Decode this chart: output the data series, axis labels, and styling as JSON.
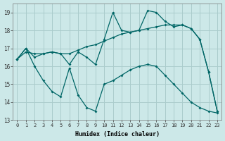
{
  "xlabel": "Humidex (Indice chaleur)",
  "bg_color": "#cce8e8",
  "line_color": "#006666",
  "grid_color": "#aacccc",
  "ylim": [
    13,
    19.5
  ],
  "xlim": [
    -0.5,
    23.5
  ],
  "yticks": [
    13,
    14,
    15,
    16,
    17,
    18,
    19
  ],
  "xticks": [
    0,
    1,
    2,
    3,
    4,
    5,
    6,
    7,
    8,
    9,
    10,
    11,
    12,
    13,
    14,
    15,
    16,
    17,
    18,
    19,
    20,
    21,
    22,
    23
  ],
  "line1_x": [
    0,
    1,
    2,
    3,
    4,
    5,
    6,
    7,
    8,
    9,
    10,
    11,
    12,
    13,
    14,
    15,
    16,
    17,
    18,
    19,
    20,
    21,
    22,
    23
  ],
  "line1_y": [
    16.4,
    17.0,
    16.5,
    16.7,
    16.8,
    16.7,
    16.1,
    16.8,
    16.5,
    16.1,
    17.5,
    19.0,
    18.0,
    17.9,
    18.0,
    19.1,
    19.0,
    18.5,
    18.2,
    18.3,
    18.1,
    17.5,
    15.7,
    13.5
  ],
  "line2_x": [
    0,
    1,
    2,
    3,
    4,
    5,
    6,
    7,
    8,
    9,
    10,
    11,
    12,
    13,
    14,
    15,
    16,
    17,
    18,
    19,
    20,
    21,
    22,
    23
  ],
  "line2_y": [
    16.4,
    17.0,
    16.0,
    15.2,
    14.6,
    14.3,
    15.9,
    14.4,
    13.7,
    13.5,
    15.0,
    15.2,
    15.5,
    15.8,
    16.0,
    16.1,
    16.0,
    15.5,
    15.0,
    14.5,
    14.0,
    13.7,
    13.5,
    13.4
  ],
  "line3_x": [
    0,
    1,
    2,
    3,
    4,
    5,
    6,
    7,
    8,
    9,
    10,
    11,
    12,
    13,
    14,
    15,
    16,
    17,
    18,
    19,
    20,
    21,
    22,
    23
  ],
  "line3_y": [
    16.4,
    16.8,
    16.7,
    16.7,
    16.8,
    16.7,
    16.7,
    16.9,
    17.1,
    17.2,
    17.4,
    17.6,
    17.8,
    17.9,
    18.0,
    18.1,
    18.2,
    18.3,
    18.3,
    18.3,
    18.1,
    17.5,
    15.7,
    13.5
  ]
}
